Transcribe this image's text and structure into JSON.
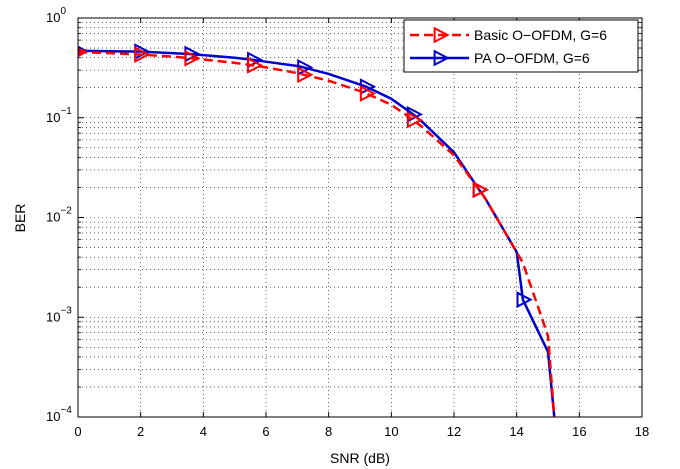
{
  "chart_data": {
    "type": "line",
    "title": "",
    "xlabel": "SNR (dB)",
    "ylabel": "BER",
    "xlim": [
      0,
      18
    ],
    "ylim": [
      0.0001,
      1
    ],
    "yscale": "log",
    "grid": true,
    "legend_position": "top-right",
    "x_ticks": [
      "0",
      "2",
      "4",
      "6",
      "8",
      "10",
      "12",
      "14",
      "16",
      "18"
    ],
    "y_ticks": [
      {
        "base": "10",
        "exp": "0",
        "value": 1
      },
      {
        "base": "10",
        "exp": "−1",
        "value": 0.1
      },
      {
        "base": "10",
        "exp": "−2",
        "value": 0.01
      },
      {
        "base": "10",
        "exp": "−3",
        "value": 0.001
      },
      {
        "base": "10",
        "exp": "−4",
        "value": 0.0001
      }
    ],
    "series": [
      {
        "name": "Basic O−OFDM, G=6",
        "color": "#ff0000",
        "line_style": "dashed",
        "marker": "triangle-right",
        "x": [
          0,
          1,
          2,
          3,
          3.6,
          4,
          5,
          5.6,
          6,
          7,
          7.2,
          8,
          9,
          9.2,
          10,
          10.7,
          11,
          12,
          12.8,
          13,
          14,
          14.2,
          15,
          15.2
        ],
        "y": [
          0.455,
          0.445,
          0.43,
          0.41,
          0.395,
          0.385,
          0.355,
          0.335,
          0.32,
          0.28,
          0.27,
          0.235,
          0.185,
          0.175,
          0.135,
          0.095,
          0.08,
          0.042,
          0.019,
          0.0155,
          0.0045,
          0.0035,
          0.00065,
          0.0001
        ],
        "markers_x": [
          0,
          2,
          3.6,
          5.6,
          7.2,
          9.2,
          10.7,
          12.8
        ],
        "markers_y": [
          0.455,
          0.43,
          0.395,
          0.335,
          0.27,
          0.175,
          0.095,
          0.019
        ]
      },
      {
        "name": "PA O−OFDM, G=6",
        "color": "#0000cc",
        "line_style": "solid",
        "marker": "triangle-right",
        "x": [
          0,
          1,
          2,
          3,
          3.6,
          4,
          5,
          5.6,
          6,
          7,
          7.2,
          8,
          9,
          9.2,
          10,
          10.7,
          11,
          12,
          12.8,
          13,
          14,
          14.2,
          15,
          15.2
        ],
        "y": [
          0.47,
          0.465,
          0.46,
          0.445,
          0.435,
          0.425,
          0.4,
          0.38,
          0.365,
          0.33,
          0.32,
          0.275,
          0.215,
          0.205,
          0.155,
          0.108,
          0.09,
          0.045,
          0.019,
          0.0155,
          0.0045,
          0.0015,
          0.00045,
          0.0001
        ],
        "markers_x": [
          0,
          2,
          3.6,
          5.6,
          7.2,
          9.2,
          10.7,
          12.8,
          14.2
        ],
        "markers_y": [
          0.47,
          0.46,
          0.435,
          0.38,
          0.32,
          0.205,
          0.108,
          0.019,
          0.0015
        ]
      }
    ]
  }
}
